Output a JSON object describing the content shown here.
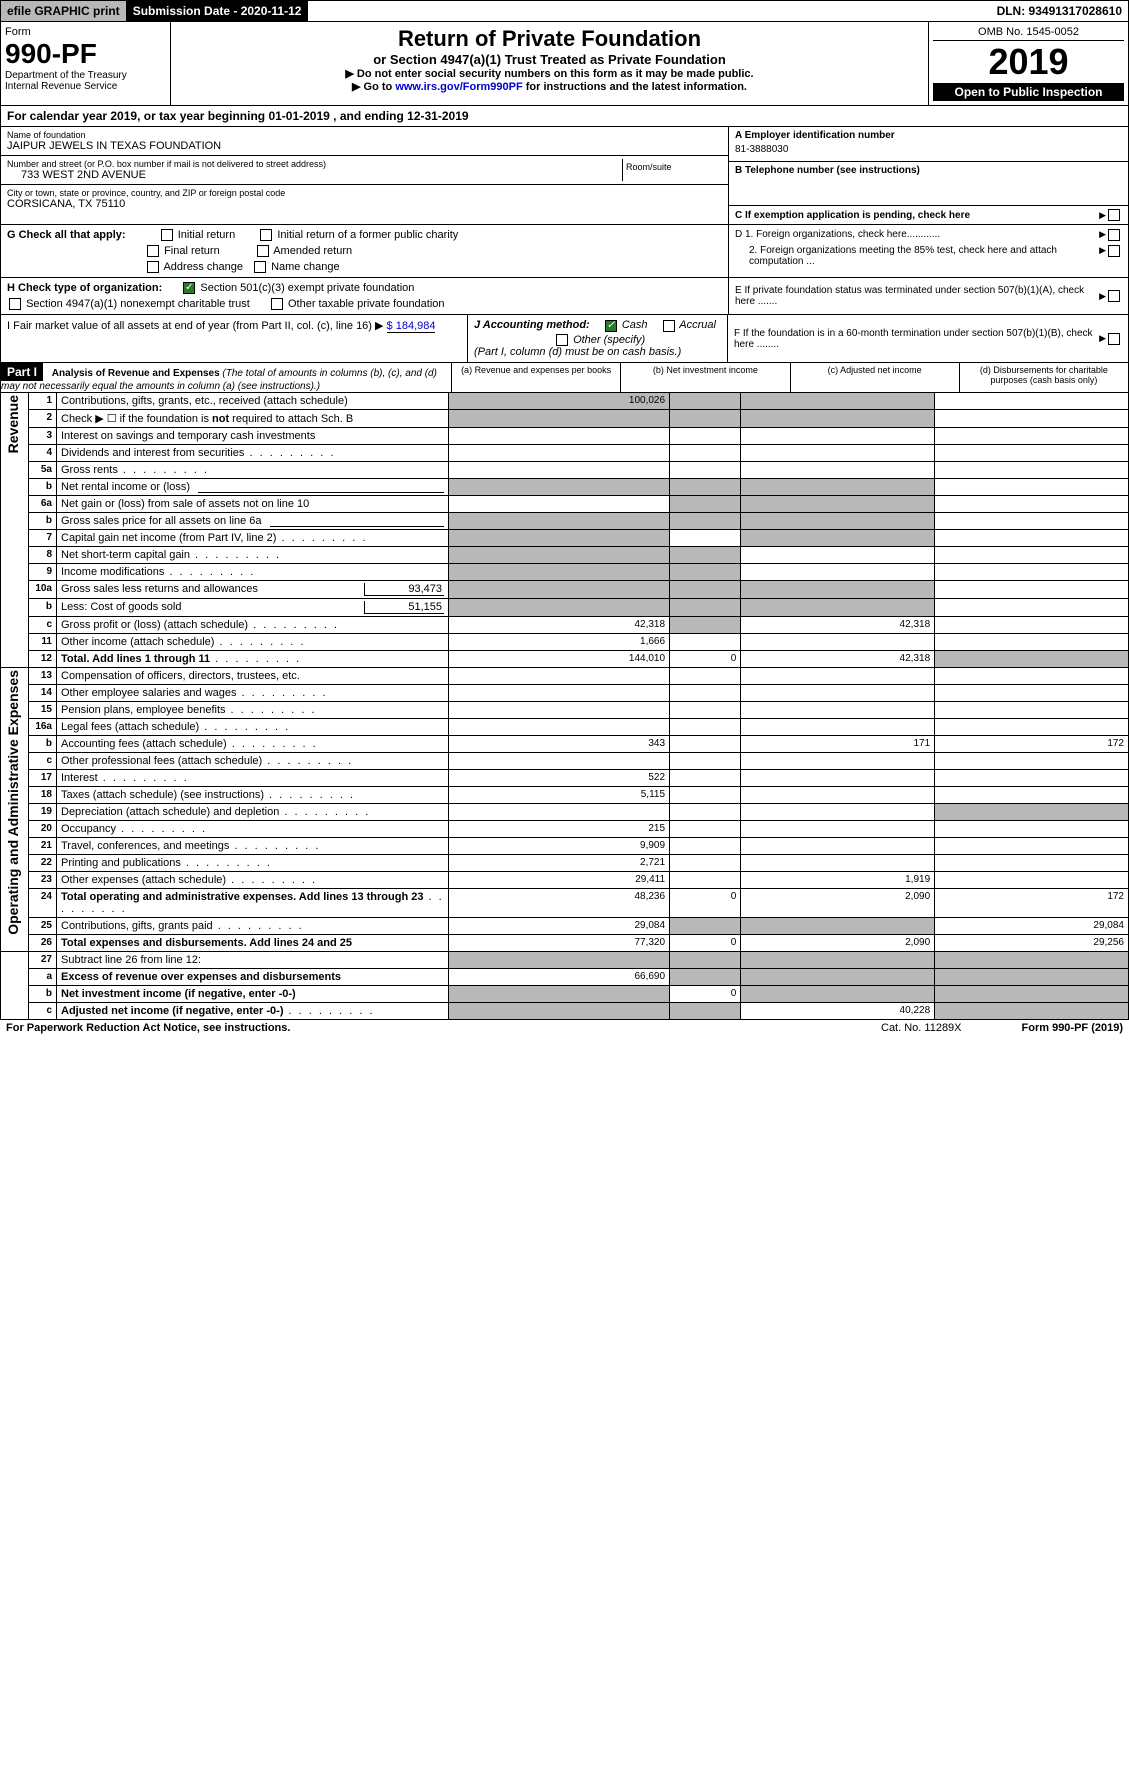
{
  "topbar": {
    "efile": "efile GRAPHIC print",
    "submission": "Submission Date - 2020-11-12",
    "dln": "DLN: 93491317028610"
  },
  "header": {
    "form_label": "Form",
    "form_num": "990-PF",
    "dept": "Department of the Treasury\nInternal Revenue Service",
    "title": "Return of Private Foundation",
    "sub1": "or Section 4947(a)(1) Trust Treated as Private Foundation",
    "sub2a": "▶ Do not enter social security numbers on this form as it may be made public.",
    "sub2b": "▶ Go to",
    "link": "www.irs.gov/Form990PF",
    "sub2c": "for instructions and the latest information.",
    "omb": "OMB No. 1545-0052",
    "year": "2019",
    "open": "Open to Public Inspection"
  },
  "cal_year": "For calendar year 2019, or tax year beginning 01-01-2019                , and ending 12-31-2019",
  "entity": {
    "name_lbl": "Name of foundation",
    "name": "JAIPUR JEWELS IN TEXAS FOUNDATION",
    "addr_lbl": "Number and street (or P.O. box number if mail is not delivered to street address)",
    "addr": "733 WEST 2ND AVENUE",
    "room_lbl": "Room/suite",
    "city_lbl": "City or town, state or province, country, and ZIP or foreign postal code",
    "city": "CORSICANA, TX  75110",
    "ein_lbl": "A Employer identification number",
    "ein": "81-3888030",
    "tel_lbl": "B Telephone number (see instructions)",
    "c_lbl": "C If exemption application is pending, check here"
  },
  "g": {
    "label": "G Check all that apply:",
    "opts": [
      "Initial return",
      "Initial return of a former public charity",
      "Final return",
      "Amended return",
      "Address change",
      "Name change"
    ]
  },
  "d": {
    "d1": "D 1. Foreign organizations, check here............",
    "d2": "2. Foreign organizations meeting the 85% test, check here and attach computation ..."
  },
  "h": {
    "label": "H Check type of organization:",
    "opt1": "Section 501(c)(3) exempt private foundation",
    "opt2": "Section 4947(a)(1) nonexempt charitable trust",
    "opt3": "Other taxable private foundation"
  },
  "e": "E  If private foundation status was terminated under section 507(b)(1)(A), check here .......",
  "i": {
    "label": "I Fair market value of all assets at end of year (from Part II, col. (c), line 16) ▶",
    "val": "$  184,984"
  },
  "j": {
    "label": "J Accounting method:",
    "cash": "Cash",
    "accrual": "Accrual",
    "other": "Other (specify)",
    "note": "(Part I, column (d) must be on cash basis.)"
  },
  "f": "F  If the foundation is in a 60-month termination under section 507(b)(1)(B), check here ........",
  "part1": {
    "hdr": "Part I",
    "title": "Analysis of Revenue and Expenses",
    "note": "(The total of amounts in columns (b), (c), and (d) may not necessarily equal the amounts in column (a) (see instructions).)",
    "cols": [
      "(a)    Revenue and expenses per books",
      "(b)  Net investment income",
      "(c)  Adjusted net income",
      "(d)  Disbursements for charitable purposes (cash basis only)"
    ]
  },
  "vlabels": {
    "rev": "Revenue",
    "exp": "Operating and Administrative Expenses"
  },
  "rows": [
    {
      "n": "1",
      "d": "Contributions, gifts, grants, etc., received (attach schedule)",
      "a": "100,026",
      "s": [
        1,
        1,
        1
      ]
    },
    {
      "n": "2",
      "d": "Check ▶ ☐ if the foundation is not required to attach Sch. B",
      "a": "",
      "s": [
        1,
        1,
        1
      ],
      "bold_not": true
    },
    {
      "n": "3",
      "d": "Interest on savings and temporary cash investments",
      "a": ""
    },
    {
      "n": "4",
      "d": "Dividends and interest from securities",
      "a": "",
      "dot": true
    },
    {
      "n": "5a",
      "d": "Gross rents",
      "a": "",
      "dot": true
    },
    {
      "n": "b",
      "d": "Net rental income or (loss)",
      "a": "",
      "s": [
        1,
        1,
        1
      ],
      "inset": true
    },
    {
      "n": "6a",
      "d": "Net gain or (loss) from sale of assets not on line 10",
      "a": "",
      "s": [
        0,
        1,
        1
      ]
    },
    {
      "n": "b",
      "d": "Gross sales price for all assets on line 6a",
      "a": "",
      "s": [
        1,
        1,
        1
      ],
      "inset": true
    },
    {
      "n": "7",
      "d": "Capital gain net income (from Part IV, line 2)",
      "a": "",
      "s": [
        1,
        0,
        1
      ],
      "dot": true
    },
    {
      "n": "8",
      "d": "Net short-term capital gain",
      "a": "",
      "s": [
        1,
        1,
        0
      ],
      "dot": true
    },
    {
      "n": "9",
      "d": "Income modifications",
      "a": "",
      "s": [
        1,
        1,
        0
      ],
      "dot": true
    },
    {
      "n": "10a",
      "d": "Gross sales less returns and allowances",
      "sub": "93,473",
      "a": "",
      "s": [
        1,
        1,
        1
      ]
    },
    {
      "n": "b",
      "d": "Less: Cost of goods sold",
      "sub": "51,155",
      "a": "",
      "s": [
        1,
        1,
        1
      ],
      "dot": true
    },
    {
      "n": "c",
      "d": "Gross profit or (loss) (attach schedule)",
      "a": "42,318",
      "c": "42,318",
      "s": [
        0,
        1,
        0
      ],
      "dot": true
    },
    {
      "n": "11",
      "d": "Other income (attach schedule)",
      "a": "1,666",
      "dot": true
    },
    {
      "n": "12",
      "d": "Total. Add lines 1 through 11",
      "bold": true,
      "a": "144,010",
      "b": "0",
      "c": "42,318",
      "s": [
        0,
        0,
        0,
        1
      ],
      "dot": true
    }
  ],
  "exp_rows": [
    {
      "n": "13",
      "d": "Compensation of officers, directors, trustees, etc.",
      "a": ""
    },
    {
      "n": "14",
      "d": "Other employee salaries and wages",
      "a": "",
      "dot": true
    },
    {
      "n": "15",
      "d": "Pension plans, employee benefits",
      "a": "",
      "dot": true
    },
    {
      "n": "16a",
      "d": "Legal fees (attach schedule)",
      "a": "",
      "dot": true
    },
    {
      "n": "b",
      "d": "Accounting fees (attach schedule)",
      "a": "343",
      "c": "171",
      "dd": "172",
      "dot": true
    },
    {
      "n": "c",
      "d": "Other professional fees (attach schedule)",
      "a": "",
      "dot": true
    },
    {
      "n": "17",
      "d": "Interest",
      "a": "522",
      "dot": true
    },
    {
      "n": "18",
      "d": "Taxes (attach schedule) (see instructions)",
      "a": "5,115",
      "dot": true
    },
    {
      "n": "19",
      "d": "Depreciation (attach schedule) and depletion",
      "a": "",
      "s": [
        0,
        0,
        0,
        1
      ],
      "dot": true
    },
    {
      "n": "20",
      "d": "Occupancy",
      "a": "215",
      "dot": true
    },
    {
      "n": "21",
      "d": "Travel, conferences, and meetings",
      "a": "9,909",
      "dot": true
    },
    {
      "n": "22",
      "d": "Printing and publications",
      "a": "2,721",
      "dot": true
    },
    {
      "n": "23",
      "d": "Other expenses (attach schedule)",
      "a": "29,411",
      "c": "1,919",
      "dot": true
    },
    {
      "n": "24",
      "d": "Total operating and administrative expenses. Add lines 13 through 23",
      "bold": true,
      "a": "48,236",
      "b": "0",
      "c": "2,090",
      "dd": "172",
      "dot": true
    },
    {
      "n": "25",
      "d": "Contributions, gifts, grants paid",
      "a": "29,084",
      "dd": "29,084",
      "s": [
        0,
        1,
        1,
        0
      ],
      "dot": true
    },
    {
      "n": "26",
      "d": "Total expenses and disbursements. Add lines 24 and 25",
      "bold": true,
      "a": "77,320",
      "b": "0",
      "c": "2,090",
      "dd": "29,256"
    }
  ],
  "sub_rows": [
    {
      "n": "27",
      "d": "Subtract line 26 from line 12:",
      "s": [
        1,
        1,
        1,
        1
      ]
    },
    {
      "n": "a",
      "d": "Excess of revenue over expenses and disbursements",
      "bold": true,
      "a": "66,690",
      "s": [
        0,
        1,
        1,
        1
      ]
    },
    {
      "n": "b",
      "d": "Net investment income (if negative, enter -0-)",
      "bold": true,
      "b": "0",
      "s": [
        1,
        0,
        1,
        1
      ]
    },
    {
      "n": "c",
      "d": "Adjusted net income (if negative, enter -0-)",
      "bold": true,
      "c": "40,228",
      "s": [
        1,
        1,
        0,
        1
      ],
      "dot": true
    }
  ],
  "footer": {
    "left": "For Paperwork Reduction Act Notice, see instructions.",
    "mid": "Cat. No. 11289X",
    "right": "Form 990-PF (2019)"
  }
}
